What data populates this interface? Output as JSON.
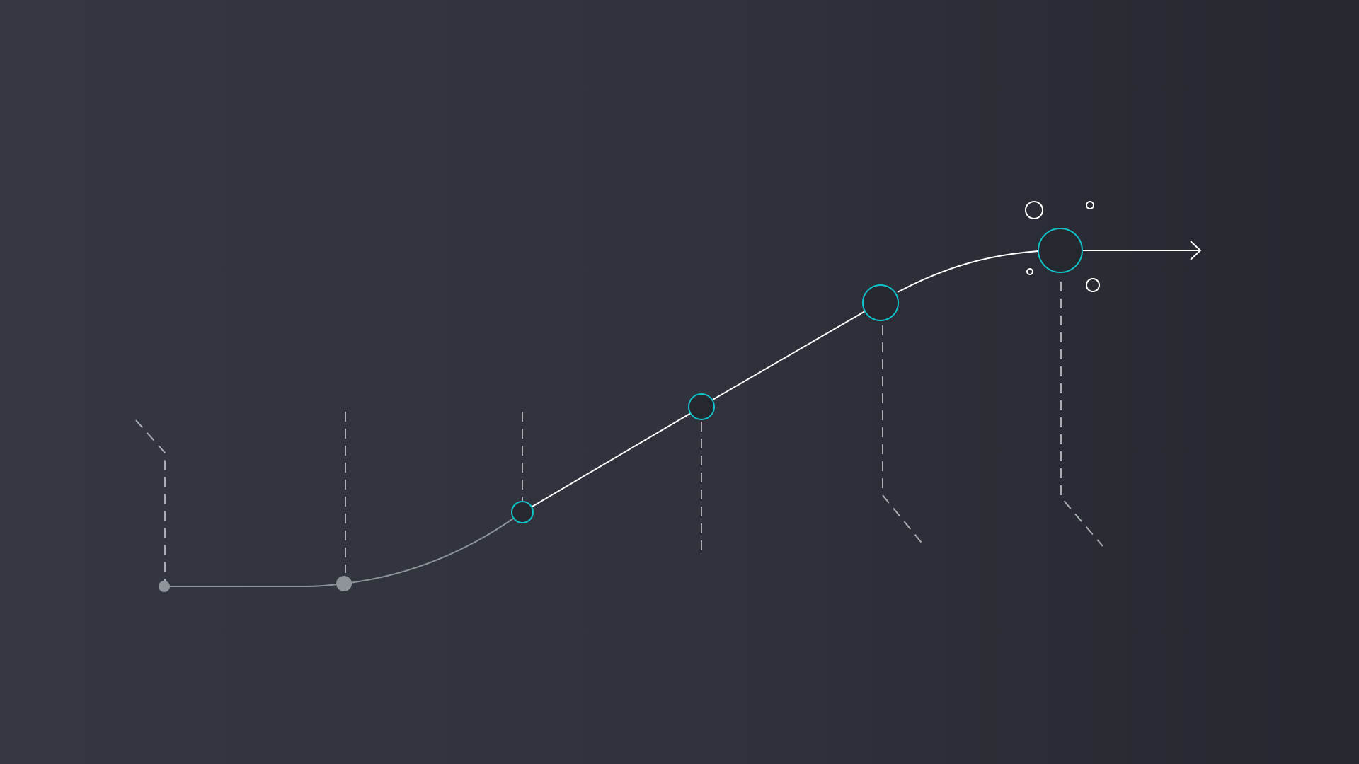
{
  "diagram": {
    "type": "growth-curve",
    "colors": {
      "background_start": "#343641",
      "background_end": "#262830",
      "accent": "#11c3c9",
      "curve_faint": "#8d9298",
      "curve_bright": "#ffffff",
      "guide": "#a9adb3",
      "node_fill": "#262830",
      "start_node_fill": "#8f949a"
    },
    "stages": [
      {
        "name": "stage-1",
        "state": "inactive"
      },
      {
        "name": "stage-2",
        "state": "inactive"
      },
      {
        "name": "stage-3",
        "state": "active"
      },
      {
        "name": "stage-4",
        "state": "active"
      },
      {
        "name": "stage-5",
        "state": "active"
      },
      {
        "name": "stage-6",
        "state": "peak"
      }
    ],
    "arrow_icon": "arrow-right-icon",
    "sparkle_icon": "burst-circles-icon"
  }
}
